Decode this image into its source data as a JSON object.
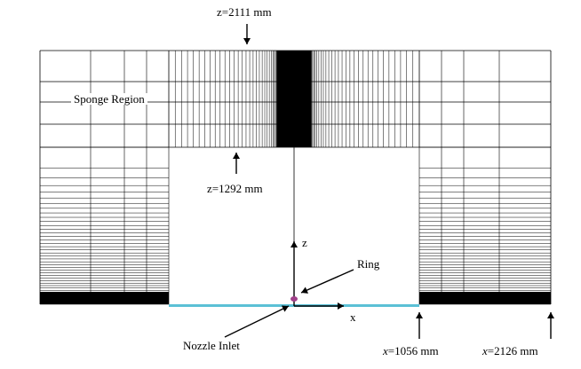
{
  "labels": {
    "z_top": "z=2111 mm",
    "z_mid": "z=1292 mm",
    "sponge": "Sponge Region",
    "axis_z": "z",
    "axis_x": "x",
    "ring": "Ring",
    "nozzle": "Nozzle Inlet",
    "x1_var": "x",
    "x1_val": "=1056 mm",
    "x2_var": "x",
    "x2_val": "=2126 mm"
  },
  "colors": {
    "mesh": "#000000",
    "inlet": "#5bc0d6",
    "ring": "#a0408a",
    "background": "#ffffff"
  }
}
